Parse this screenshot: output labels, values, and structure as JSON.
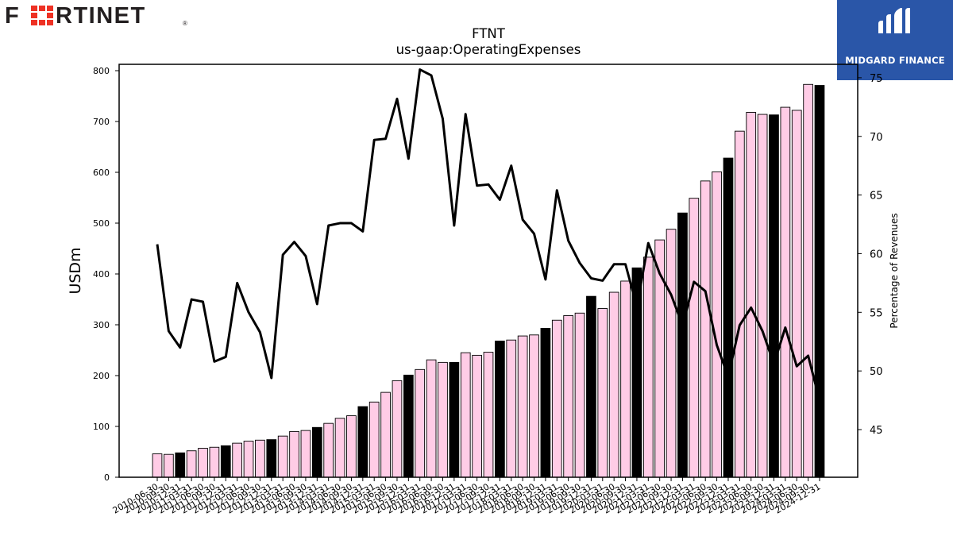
{
  "brand_left": {
    "text": "FORTINET",
    "registered": "®",
    "accent": "#ee3124",
    "text_color": "#231f20"
  },
  "brand_right": {
    "text": "MIDGARD FINANCE",
    "bg": "#2a56a8"
  },
  "chart_data": {
    "type": "bar",
    "title": "FTNT",
    "subtitle": "us-gaap:OperatingExpenses",
    "ylabel": "USDm",
    "y2label": "Percentage of Revenues",
    "ylim": [
      0,
      810
    ],
    "y2lim": [
      41,
      76
    ],
    "yticks": [
      0,
      100,
      200,
      300,
      400,
      500,
      600,
      700,
      800
    ],
    "y2ticks": [
      45,
      50,
      55,
      60,
      65,
      70,
      75
    ],
    "grid": false,
    "legend": "none",
    "colors": {
      "bar_quarter": "#ffcce6",
      "bar_annual": "#000000",
      "bar_edge": "#000000",
      "line": "#000000"
    },
    "categories": [
      "2010-06-30",
      "2010-09-30",
      "2010-12-31",
      "2011-03-31",
      "2011-06-30",
      "2011-09-30",
      "2011-12-31",
      "2012-03-31",
      "2012-06-30",
      "2012-09-30",
      "2012-12-31",
      "2013-03-31",
      "2013-06-30",
      "2013-09-30",
      "2013-12-31",
      "2014-03-31",
      "2014-06-30",
      "2014-09-30",
      "2014-12-31",
      "2015-03-31",
      "2015-06-30",
      "2015-09-30",
      "2015-12-31",
      "2016-03-31",
      "2016-06-30",
      "2016-09-30",
      "2016-12-31",
      "2017-03-31",
      "2017-06-30",
      "2017-09-30",
      "2017-12-31",
      "2018-03-31",
      "2018-06-30",
      "2018-09-30",
      "2018-12-31",
      "2019-03-31",
      "2019-06-30",
      "2019-09-30",
      "2019-12-31",
      "2020-03-31",
      "2020-06-30",
      "2020-09-30",
      "2020-12-31",
      "2021-03-31",
      "2021-06-30",
      "2021-09-30",
      "2021-12-31",
      "2022-03-31",
      "2022-06-30",
      "2022-09-30",
      "2022-12-31",
      "2023-03-31",
      "2023-06-30",
      "2023-09-30",
      "2023-12-31",
      "2024-03-31",
      "2024-06-30",
      "2024-09-30",
      "2024-12-31"
    ],
    "tick_labels": [
      "2010-06-30",
      "2010-09-30",
      "2010-12-31",
      "2011-03-31",
      "2011-06-30",
      "2011-09-30",
      "2011-12-31",
      "2012-03-31",
      "2012-06-30",
      "2012-09-30",
      "2012-12-31",
      "2013-03-31",
      "2013-06-30",
      "2013-09-30",
      "2013-12-31",
      "2014-03-31",
      "2014-06-30",
      "2014-09-30",
      "2014-12-31",
      "2015-03-31",
      "2015-06-30",
      "2015-09-30",
      "2015-12-31",
      "2016-03-31",
      "2016-06-30",
      "2016-09-30",
      "2016-12-31",
      "2017-03-31",
      "2017-06-30",
      "2017-09-30",
      "2017-12-31",
      "2018-03-31",
      "2018-06-30",
      "2018-09-30",
      "2018-12-31",
      "2019-03-31",
      "2019-06-30",
      "2019-09-30",
      "2019-12-31",
      "2020-03-31",
      "2020-06-30",
      "2020-09-30",
      "2020-12-31",
      "2021-03-31",
      "2021-06-30",
      "2021-09-30",
      "2021-12-31",
      "2022-03-31",
      "2022-06-30",
      "2022-09-30",
      "2022-12-31",
      "2023-03-31",
      "2023-06-30",
      "2023-09-30",
      "2023-12-31",
      "2024-03-31",
      "2024-06-30",
      "2024-09-30",
      "2024-12-31"
    ],
    "series": [
      {
        "axis": "left",
        "kind": "bar",
        "values": [
          46,
          45,
          48,
          52,
          57,
          59,
          62,
          67,
          71,
          73,
          74,
          81,
          90,
          92,
          98,
          106,
          116,
          121,
          139,
          148,
          167,
          190,
          201,
          212,
          231,
          226,
          226,
          245,
          240,
          246,
          268,
          270,
          278,
          280,
          293,
          309,
          318,
          323,
          356,
          332,
          364,
          386,
          412,
          433,
          467,
          488,
          520,
          549,
          583,
          601,
          628,
          681,
          718,
          714,
          713,
          728,
          722,
          773,
          771
        ],
        "annual": [
          false,
          false,
          true,
          false,
          false,
          false,
          true,
          false,
          false,
          false,
          true,
          false,
          false,
          false,
          true,
          false,
          false,
          false,
          true,
          false,
          false,
          false,
          true,
          false,
          false,
          false,
          true,
          false,
          false,
          false,
          true,
          false,
          false,
          false,
          true,
          false,
          false,
          false,
          true,
          false,
          false,
          false,
          true,
          false,
          false,
          false,
          true,
          false,
          false,
          false,
          true,
          false,
          false,
          false,
          true,
          false,
          false,
          false,
          true
        ]
      },
      {
        "axis": "right",
        "kind": "line",
        "values": [
          60.8,
          53.4,
          52.0,
          56.1,
          55.9,
          50.8,
          51.2,
          57.5,
          55.0,
          53.3,
          49.4,
          59.9,
          61.0,
          59.8,
          55.7,
          62.4,
          62.6,
          62.6,
          61.9,
          69.7,
          69.8,
          73.2,
          68.1,
          75.7,
          75.2,
          71.5,
          62.4,
          71.9,
          65.8,
          65.9,
          64.6,
          67.5,
          62.9,
          61.7,
          57.8,
          65.4,
          61.1,
          59.2,
          57.9,
          57.7,
          59.1,
          59.1,
          55.5,
          60.9,
          58.3,
          56.5,
          53.9,
          57.6,
          56.8,
          52.2,
          49.5,
          53.9,
          55.4,
          53.4,
          50.6,
          53.7,
          50.4,
          51.3,
          47.5
        ]
      }
    ]
  }
}
